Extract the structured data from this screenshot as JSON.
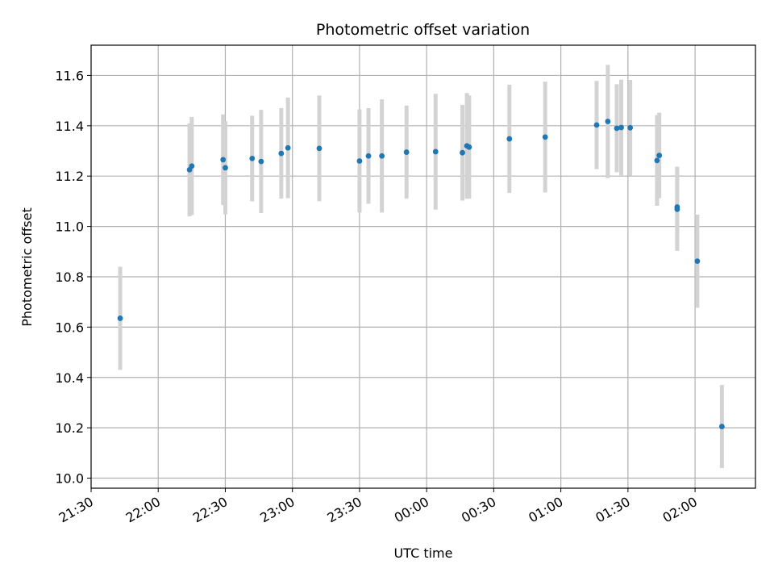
{
  "chart_data": {
    "type": "scatter",
    "title": "Photometric offset variation",
    "xlabel": "UTC time",
    "ylabel": "Photometric offset",
    "x_unit": "UTC time of day (HH:MM, night crossing midnight)",
    "xlim": [
      "21:30",
      "02:27"
    ],
    "ylim": [
      9.96,
      11.72
    ],
    "grid": true,
    "x_ticks": [
      "21:30",
      "22:00",
      "22:30",
      "23:00",
      "23:30",
      "00:00",
      "00:30",
      "01:00",
      "01:30",
      "02:00"
    ],
    "y_ticks": [
      10.0,
      10.2,
      10.4,
      10.6,
      10.8,
      11.0,
      11.2,
      11.4,
      11.6
    ],
    "y_tick_labels": [
      "10.0",
      "10.2",
      "10.4",
      "10.6",
      "10.8",
      "11.0",
      "11.2",
      "11.4",
      "11.6"
    ],
    "point_color": "#1f77b4",
    "errorbar_color": "#d3d3d3",
    "points": [
      {
        "x": "21:43",
        "y": 10.635,
        "err": 0.205
      },
      {
        "x": "22:14",
        "y": 11.225,
        "err": 0.185
      },
      {
        "x": "22:15",
        "y": 11.24,
        "err": 0.195
      },
      {
        "x": "22:29",
        "y": 11.265,
        "err": 0.18
      },
      {
        "x": "22:30",
        "y": 11.233,
        "err": 0.185
      },
      {
        "x": "22:42",
        "y": 11.27,
        "err": 0.17
      },
      {
        "x": "22:46",
        "y": 11.258,
        "err": 0.205
      },
      {
        "x": "22:55",
        "y": 11.29,
        "err": 0.18
      },
      {
        "x": "22:58",
        "y": 11.312,
        "err": 0.2
      },
      {
        "x": "23:12",
        "y": 11.31,
        "err": 0.21
      },
      {
        "x": "23:30",
        "y": 11.26,
        "err": 0.205
      },
      {
        "x": "23:34",
        "y": 11.28,
        "err": 0.19
      },
      {
        "x": "23:40",
        "y": 11.28,
        "err": 0.225
      },
      {
        "x": "23:51",
        "y": 11.295,
        "err": 0.185
      },
      {
        "x": "00:04",
        "y": 11.297,
        "err": 0.23
      },
      {
        "x": "00:16",
        "y": 11.293,
        "err": 0.19
      },
      {
        "x": "00:18",
        "y": 11.32,
        "err": 0.21
      },
      {
        "x": "00:19",
        "y": 11.315,
        "err": 0.205
      },
      {
        "x": "00:37",
        "y": 11.348,
        "err": 0.215
      },
      {
        "x": "00:53",
        "y": 11.355,
        "err": 0.22
      },
      {
        "x": "01:16",
        "y": 11.403,
        "err": 0.175
      },
      {
        "x": "01:21",
        "y": 11.417,
        "err": 0.225
      },
      {
        "x": "01:25",
        "y": 11.39,
        "err": 0.175
      },
      {
        "x": "01:27",
        "y": 11.393,
        "err": 0.19
      },
      {
        "x": "01:31",
        "y": 11.392,
        "err": 0.19
      },
      {
        "x": "01:43",
        "y": 11.262,
        "err": 0.18
      },
      {
        "x": "01:44",
        "y": 11.282,
        "err": 0.17
      },
      {
        "x": "01:52",
        "y": 11.068,
        "err": 0.165
      },
      {
        "x": "01:52",
        "y": 11.077,
        "err": 0.16
      },
      {
        "x": "02:01",
        "y": 10.862,
        "err": 0.185
      },
      {
        "x": "02:12",
        "y": 10.205,
        "err": 0.165
      }
    ]
  }
}
